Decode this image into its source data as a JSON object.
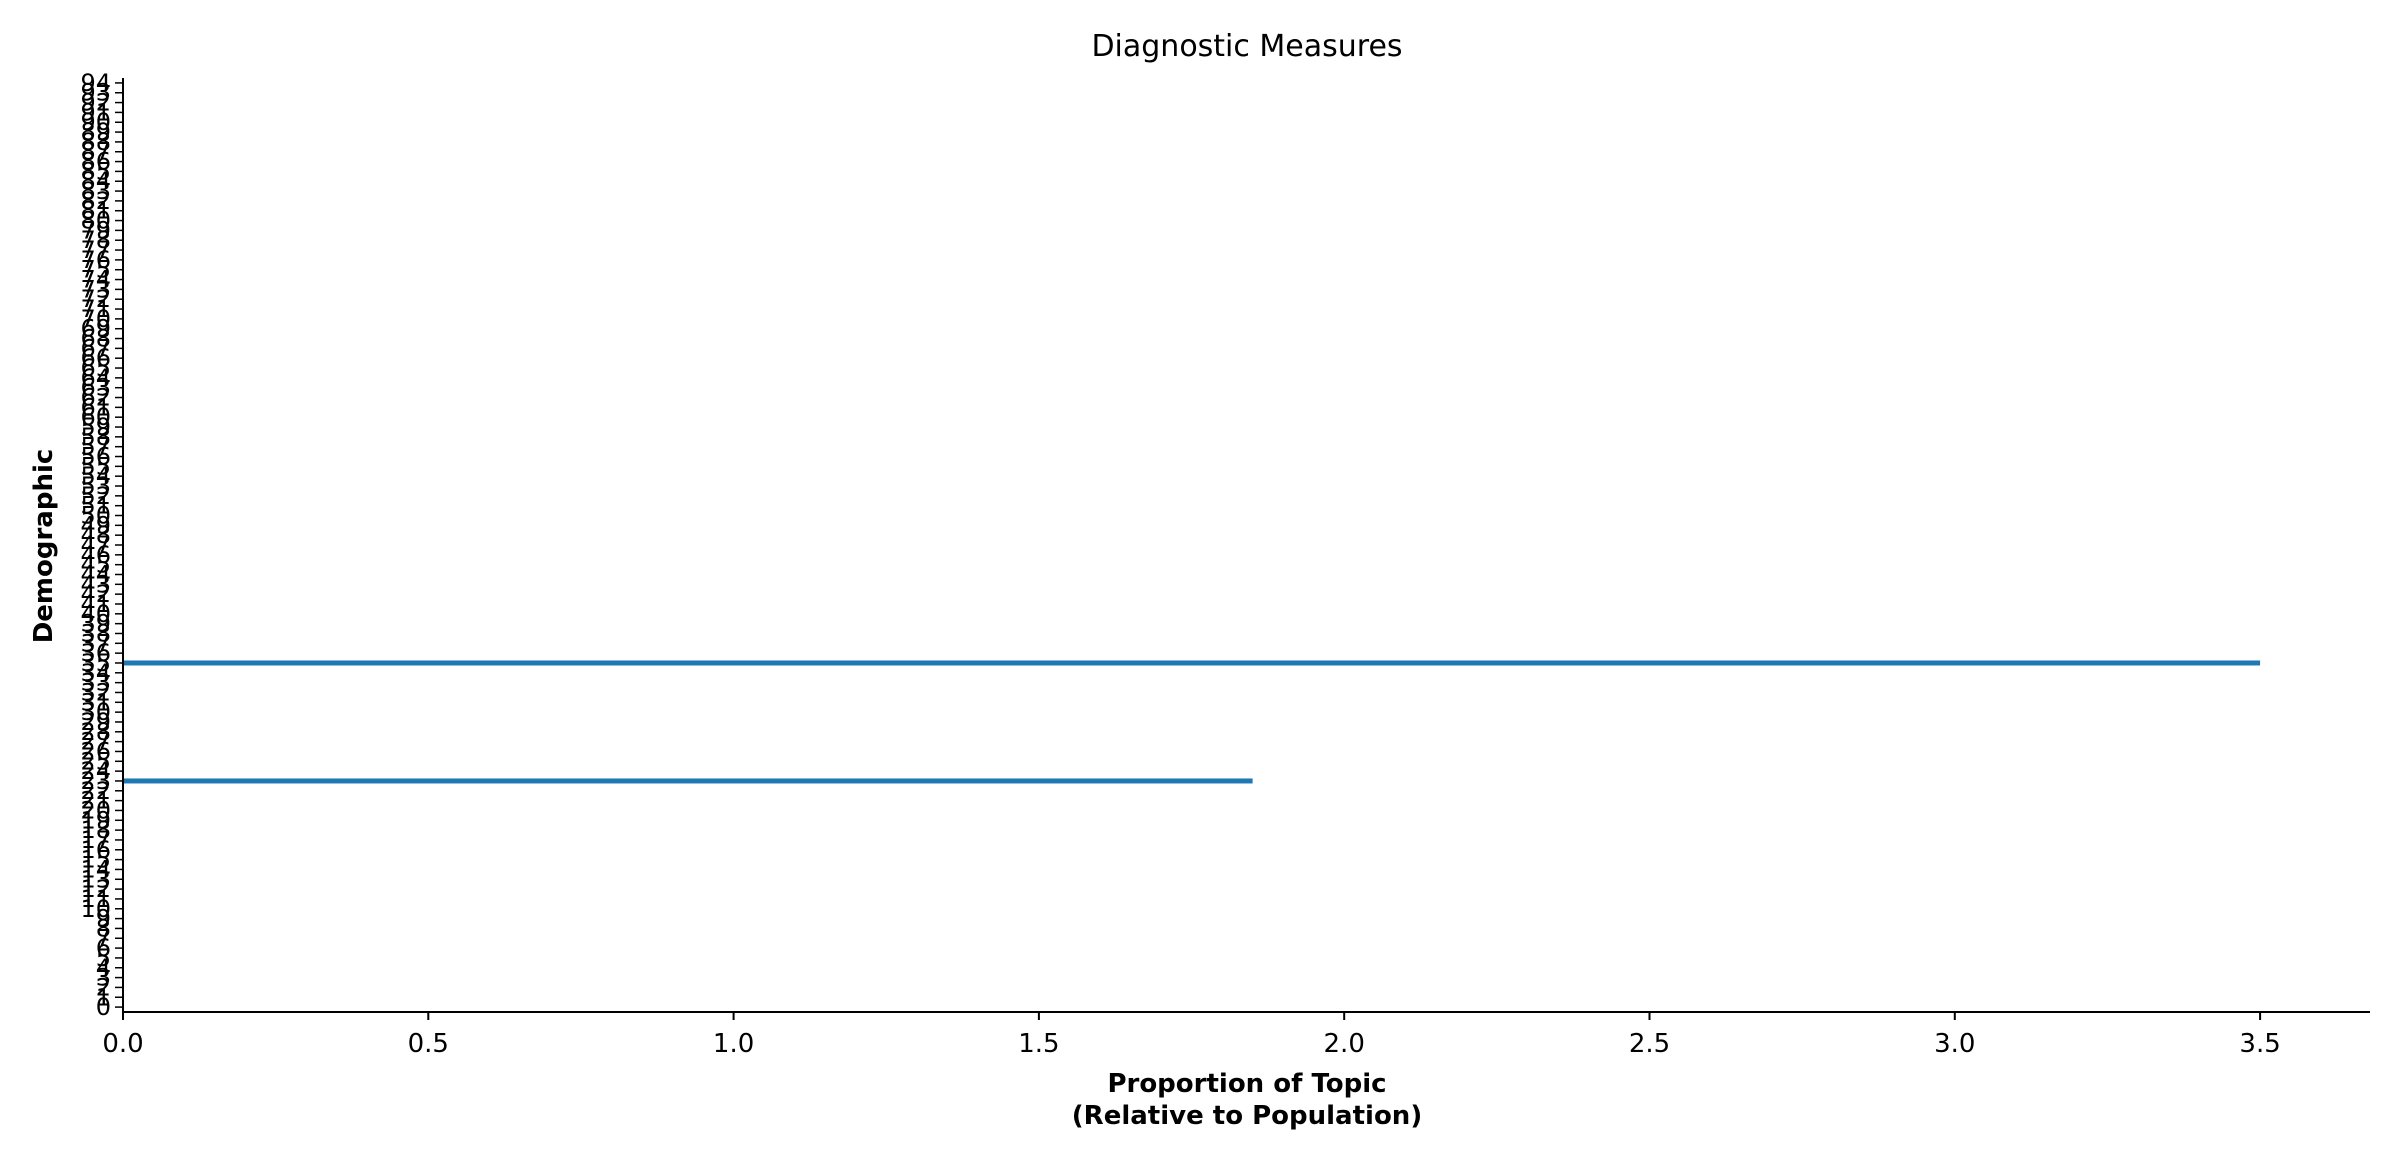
{
  "chart_data": {
    "type": "bar",
    "orientation": "horizontal",
    "title": "Diagnostic Measures",
    "xlabel_line1": "Proportion of Topic",
    "xlabel_line2": "(Relative to Population)",
    "ylabel": "Demographic",
    "xlim": [
      0.0,
      3.68
    ],
    "ylim": [
      -0.5,
      94.5
    ],
    "x_ticks": [
      "0.0",
      "0.5",
      "1.0",
      "1.5",
      "2.0",
      "2.5",
      "3.0",
      "3.5"
    ],
    "y_tick_values": [
      0,
      1,
      2,
      3,
      4,
      5,
      6,
      7,
      8,
      9,
      10,
      11,
      12,
      13,
      14,
      15,
      16,
      17,
      18,
      19,
      20,
      21,
      22,
      23,
      24,
      25,
      26,
      27,
      28,
      29,
      30,
      31,
      32,
      33,
      34,
      35,
      36,
      37,
      38,
      39,
      40,
      41,
      42,
      43,
      44,
      45,
      46,
      47,
      48,
      49,
      50,
      51,
      52,
      53,
      54,
      55,
      56,
      57,
      58,
      59,
      60,
      61,
      62,
      63,
      64,
      65,
      66,
      67,
      68,
      69,
      70,
      71,
      72,
      73,
      74,
      75,
      76,
      77,
      78,
      79,
      80,
      81,
      82,
      83,
      84,
      85,
      86,
      87,
      88,
      89,
      90,
      91,
      92,
      93,
      94
    ],
    "series": [
      {
        "color": "#1f77b4",
        "points": [
          {
            "y": 23,
            "value": 1.85
          },
          {
            "y": 35,
            "value": 3.5
          }
        ]
      }
    ],
    "grid": false,
    "legend": "none"
  }
}
